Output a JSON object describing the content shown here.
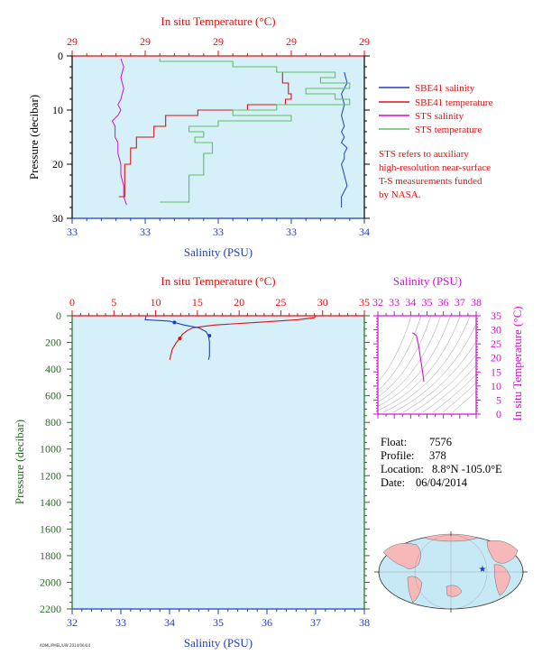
{
  "colors": {
    "blue": "#1f3fbf",
    "red": "#e01010",
    "magenta": "#d010d0",
    "green": "#5fbf5f",
    "pink": "#f08080",
    "axis_green": "#2a6a2a",
    "plot_bg": "#d6f0fa",
    "map_ocean": "#c7e9f5",
    "map_land": "#f6b8b8"
  },
  "chart_data": [
    {
      "type": "line",
      "title": "In situ Temperature (°C)",
      "top_ticks": [
        "29",
        "29",
        "29",
        "29",
        "29"
      ],
      "xlabel": "Salinity (PSU)",
      "bottom_ticks": [
        "33",
        "33",
        "33",
        "33",
        "34"
      ],
      "ylabel": "Pressure (decibar)",
      "y_ticks": [
        "0",
        "10",
        "20",
        "30"
      ],
      "ylim": [
        30,
        0
      ],
      "series": [
        {
          "name": "SBE41 salinity",
          "color": "#1f3fbf",
          "x": [
            33.91,
            33.92,
            33.9,
            33.91,
            33.9,
            33.91,
            33.9,
            33.91,
            33.9,
            33.92,
            33.91,
            33.91,
            33.9,
            33.91,
            33.92,
            33.9,
            33.9,
            33.9
          ],
          "y": [
            3,
            5,
            7,
            9,
            11,
            13,
            14,
            15,
            16,
            17,
            18,
            19,
            20,
            22,
            24,
            26,
            27,
            28
          ]
        },
        {
          "name": "SBE41 temperature",
          "color": "#e01010",
          "x": [
            0.72,
            0.74,
            0.75,
            0.73,
            0.6,
            0.43,
            0.32,
            0.28,
            0.22,
            0.2,
            0.18,
            0.16
          ],
          "y": [
            3,
            5,
            7,
            8,
            9,
            10,
            11,
            13,
            15,
            17,
            20,
            26
          ]
        },
        {
          "name": "STS salinity",
          "color": "#d010d0",
          "x": [
            33.13,
            33.14,
            33.13,
            33.14,
            33.13,
            33.12,
            33.13,
            33.12,
            33.1,
            33.11,
            33.11,
            33.12,
            33.12,
            33.12,
            33.13,
            33.13,
            33.14,
            33.14,
            33.15
          ],
          "y": [
            0.5,
            2,
            4,
            6,
            8,
            9,
            10,
            11,
            12,
            13,
            15,
            16,
            17,
            18,
            20,
            22,
            24,
            26,
            27.5
          ]
        },
        {
          "name": "STS temperature",
          "color": "#5fbf5f",
          "x": [
            0.3,
            0.55,
            0.7,
            0.9,
            0.85,
            0.95,
            0.8,
            0.9,
            0.95,
            0.7,
            0.55,
            0.75,
            0.5,
            0.4,
            0.45,
            0.42,
            0.48,
            0.45,
            0.4,
            0.3
          ],
          "y": [
            0.5,
            1,
            2,
            3,
            4,
            5,
            6,
            7,
            8,
            9,
            10,
            11,
            12,
            13,
            14,
            15,
            16,
            18,
            22,
            27
          ]
        }
      ],
      "note": [
        "STS refers to auxiliary",
        "high-resolution near-surface",
        "T-S measurements funded",
        "by NASA."
      ]
    },
    {
      "type": "line",
      "title": "In situ Temperature (°C)",
      "top_ticks": [
        "0",
        "5",
        "10",
        "15",
        "20",
        "25",
        "30",
        "35"
      ],
      "xlim_top": [
        0,
        35
      ],
      "xlabel": "Salinity (PSU)",
      "bottom_ticks": [
        "32",
        "33",
        "34",
        "35",
        "36",
        "37",
        "38"
      ],
      "xlim": [
        32,
        38
      ],
      "ylabel": "Pressure (decibar)",
      "y_ticks": [
        "0",
        "200",
        "400",
        "600",
        "800",
        "1000",
        "1200",
        "1400",
        "1600",
        "1800",
        "2000",
        "2200"
      ],
      "ylim": [
        2200,
        0
      ],
      "series": [
        {
          "name": "Temperature",
          "color": "#e01010",
          "axis": "top",
          "x": [
            29.2,
            29.0,
            27,
            22,
            17,
            14.5,
            13.8,
            13.2,
            12.9,
            12.5,
            12.0,
            11.8,
            11.7
          ],
          "y": [
            0,
            15,
            30,
            50,
            70,
            90,
            110,
            140,
            170,
            200,
            250,
            300,
            330
          ]
        },
        {
          "name": "Salinity",
          "color": "#1f3fbf",
          "axis": "bottom",
          "x": [
            33.52,
            33.5,
            34.0,
            34.1,
            34.3,
            34.6,
            34.75,
            34.8,
            34.82,
            34.82,
            34.8
          ],
          "y": [
            0,
            30,
            40,
            50,
            70,
            90,
            120,
            150,
            200,
            300,
            330
          ]
        }
      ],
      "markers": [
        {
          "series": "Salinity",
          "x": 34.1,
          "y": 50
        },
        {
          "series": "Salinity",
          "x": 34.82,
          "y": 150
        },
        {
          "series": "Temperature",
          "x": 12.9,
          "y": 170
        }
      ]
    },
    {
      "type": "line",
      "title": "Salinity (PSU)",
      "top_ticks": [
        "32",
        "33",
        "34",
        "35",
        "36",
        "37",
        "38"
      ],
      "xlim": [
        32,
        38
      ],
      "ylabel": "In situ Temperature (°C)",
      "y_ticks": [
        "0",
        "5",
        "10",
        "15",
        "20",
        "25",
        "30",
        "35"
      ],
      "ylim": [
        0,
        35
      ],
      "series": [
        {
          "name": "T-S",
          "color": "#d010d0",
          "x": [
            34.1,
            34.35,
            34.5,
            34.6,
            34.7,
            34.78,
            34.8
          ],
          "y": [
            29,
            28,
            24,
            20,
            16,
            13,
            11.5
          ]
        }
      ]
    }
  ],
  "info": {
    "float_label": "Float:",
    "float_value": "7576",
    "profile_label": "Profile:",
    "profile_value": "378",
    "location_label": "Location:",
    "location_value": "8.8°N  -105.0°E",
    "date_label": "Date:",
    "date_value": "06/04/2014"
  },
  "footer_code": "AOML/PMEL/UW 2014/06/04"
}
